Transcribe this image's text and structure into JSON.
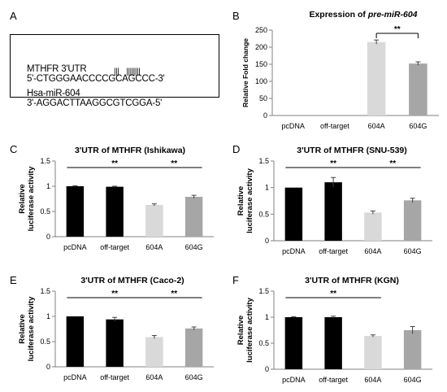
{
  "panel_letters": [
    "A",
    "B",
    "C",
    "D",
    "E",
    "F"
  ],
  "sequence": {
    "line1_label": "MTHFR 3'UTR",
    "line1_seq": "5'-CTGGGAACCCCGCAGCCC-3'",
    "pairing_marks": "|||    ||||||||",
    "line2_label": "Hsa-miR-604",
    "line2_seq": "3'-AGGACTTAAGGCGTCGGA-5'"
  },
  "chart_data": [
    {
      "panel": "B",
      "type": "bar",
      "title_prefix": "Expression of ",
      "title_italic": "pre-miR-604",
      "ylabel": "Relative Fold change",
      "ylim": [
        0,
        250
      ],
      "yticks": [
        "0",
        "50",
        "100",
        "150",
        "200",
        "250"
      ],
      "categories": [
        "pcDNA",
        "off-target",
        "604A",
        "604G"
      ],
      "values": [
        0,
        0,
        215,
        152
      ],
      "errors": [
        0,
        0,
        6,
        5
      ],
      "colors": [
        "#000000",
        "#000000",
        "#d9d9d9",
        "#a6a6a6"
      ],
      "sig": [
        {
          "from": 2,
          "to": 3,
          "label": "**"
        }
      ]
    },
    {
      "panel": "C",
      "type": "bar",
      "title": "3'UTR of MTHFR (Ishikawa)",
      "ylabel": [
        "Relative",
        "luciferase activity"
      ],
      "ylim": [
        0,
        1.5
      ],
      "yticks": [
        "0",
        "0.5",
        "1",
        "1.5"
      ],
      "categories": [
        "pcDNA",
        "off-target",
        "604A",
        "604G"
      ],
      "values": [
        1.0,
        0.99,
        0.63,
        0.79
      ],
      "errors": [
        0.01,
        0.01,
        0.02,
        0.03
      ],
      "colors": [
        "#000000",
        "#000000",
        "#d9d9d9",
        "#a6a6a6"
      ],
      "sig": [
        {
          "from": 0,
          "to": 2,
          "label": "**"
        },
        {
          "from": 2,
          "to": 3,
          "label": "**"
        }
      ]
    },
    {
      "panel": "D",
      "type": "bar",
      "title": "3'UTR of MTHFR (SNU-539)",
      "ylabel": [
        "Relative",
        "luciferase activity"
      ],
      "ylim": [
        0,
        1.5
      ],
      "yticks": [
        "0",
        "0.5",
        "1",
        "1.5"
      ],
      "categories": [
        "pcDNA",
        "off-target",
        "604A",
        "604G"
      ],
      "values": [
        1.0,
        1.1,
        0.53,
        0.76
      ],
      "errors": [
        0.0,
        0.09,
        0.03,
        0.04
      ],
      "colors": [
        "#000000",
        "#000000",
        "#d9d9d9",
        "#a6a6a6"
      ],
      "sig": [
        {
          "from": 0,
          "to": 2,
          "label": "**"
        },
        {
          "from": 2,
          "to": 3,
          "label": "**"
        }
      ]
    },
    {
      "panel": "E",
      "type": "bar",
      "title": "3'UTR of MTHFR (Caco-2)",
      "ylabel": [
        "Relative",
        "luciferase activity"
      ],
      "ylim": [
        0,
        1.5
      ],
      "yticks": [
        "0",
        "0.5",
        "1",
        "1.5"
      ],
      "categories": [
        "pcDNA",
        "off-target",
        "604A",
        "604G"
      ],
      "values": [
        1.0,
        0.94,
        0.59,
        0.76
      ],
      "errors": [
        0.0,
        0.04,
        0.03,
        0.03
      ],
      "colors": [
        "#000000",
        "#000000",
        "#d9d9d9",
        "#a6a6a6"
      ],
      "sig": [
        {
          "from": 0,
          "to": 2,
          "label": "**"
        },
        {
          "from": 2,
          "to": 3,
          "label": "**"
        }
      ]
    },
    {
      "panel": "F",
      "type": "bar",
      "title": "3'UTR of MTHFR (KGN)",
      "ylabel": [
        "Relative",
        "luciferase activity"
      ],
      "ylim": [
        0,
        1.5
      ],
      "yticks": [
        "0",
        "0.5",
        "1",
        "1.5"
      ],
      "categories": [
        "pcDNA",
        "off-target",
        "604A",
        "604G"
      ],
      "values": [
        1.0,
        1.0,
        0.64,
        0.75
      ],
      "errors": [
        0.01,
        0.02,
        0.02,
        0.07
      ],
      "colors": [
        "#000000",
        "#000000",
        "#d9d9d9",
        "#a6a6a6"
      ],
      "sig": [
        {
          "from": 0,
          "to": 2,
          "label": "**"
        }
      ]
    }
  ]
}
